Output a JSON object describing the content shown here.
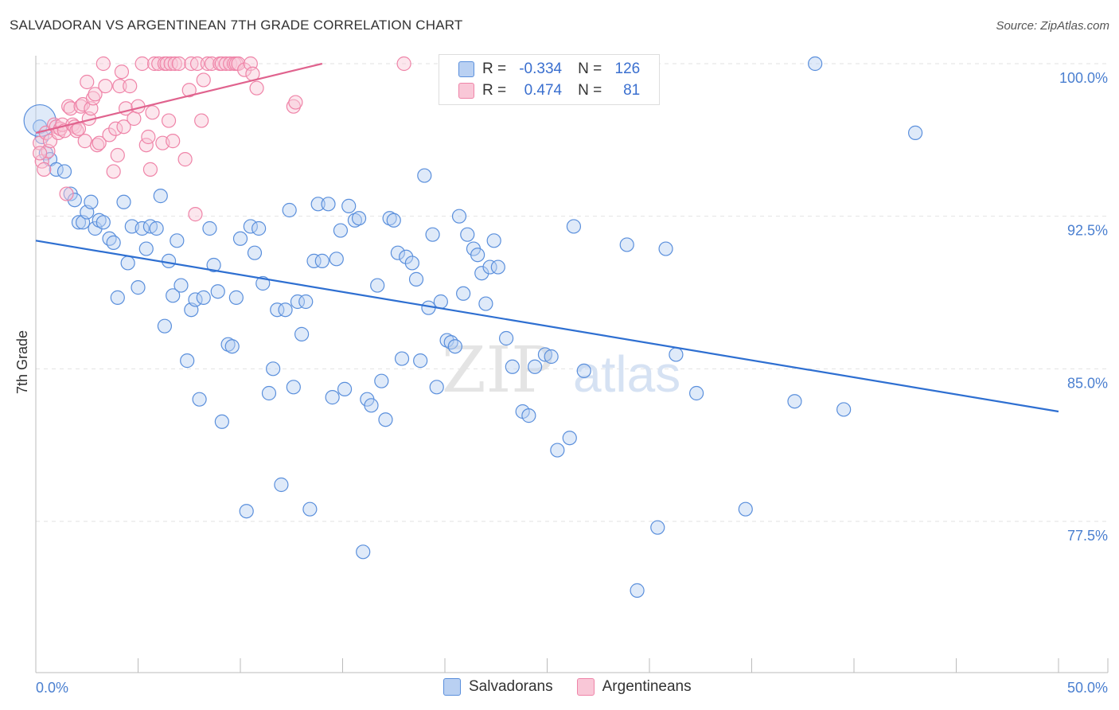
{
  "title": "SALVADORAN VS ARGENTINEAN 7TH GRADE CORRELATION CHART",
  "source": "Source: ZipAtlas.com",
  "watermark": {
    "zip": "ZIP",
    "atlas": "atlas"
  },
  "legend": {
    "r_label": "R =",
    "n_label": "N =",
    "series": [
      {
        "name": "Salvadorans",
        "r": "-0.334",
        "n": "126"
      },
      {
        "name": "Argentineans",
        "r": "0.474",
        "n": "81"
      }
    ]
  },
  "chart_data": {
    "type": "scatter",
    "title": "SALVADORAN VS ARGENTINEAN 7TH GRADE CORRELATION CHART",
    "xlabel": "",
    "ylabel": "7th Grade",
    "xlim": [
      0,
      50
    ],
    "ylim": [
      71,
      101
    ],
    "x_tick_labels": [
      "0.0%",
      "50.0%"
    ],
    "y_ticks": [
      100.0,
      92.5,
      85.0,
      77.5
    ],
    "y_tick_labels": [
      "100.0%",
      "92.5%",
      "85.0%",
      "77.5%"
    ],
    "grid": true,
    "colors": {
      "Salvadorans": "#5a8fdc",
      "Argentineans": "#ef84a8",
      "axis_text": "#4a7fd0"
    },
    "series": [
      {
        "name": "Salvadorans",
        "color": "#5a8fdc",
        "trend": {
          "x": [
            0,
            50
          ],
          "y": [
            91.3,
            82.9
          ]
        },
        "points": [
          [
            0.3,
            96.4
          ],
          [
            0.5,
            95.6
          ],
          [
            0.7,
            95.3
          ],
          [
            1.0,
            94.8
          ],
          [
            1.4,
            94.7
          ],
          [
            1.7,
            93.6
          ],
          [
            1.9,
            93.3
          ],
          [
            2.1,
            92.2
          ],
          [
            2.3,
            92.2
          ],
          [
            2.5,
            92.7
          ],
          [
            2.7,
            93.2
          ],
          [
            2.9,
            91.9
          ],
          [
            3.1,
            92.3
          ],
          [
            3.3,
            92.2
          ],
          [
            3.6,
            91.4
          ],
          [
            3.8,
            91.2
          ],
          [
            4.0,
            88.5
          ],
          [
            4.3,
            93.2
          ],
          [
            4.5,
            90.2
          ],
          [
            4.7,
            92.0
          ],
          [
            5.0,
            89.0
          ],
          [
            5.2,
            91.9
          ],
          [
            5.4,
            90.9
          ],
          [
            5.6,
            92.0
          ],
          [
            5.9,
            91.9
          ],
          [
            6.1,
            93.5
          ],
          [
            6.3,
            87.1
          ],
          [
            6.5,
            90.3
          ],
          [
            6.7,
            88.6
          ],
          [
            6.9,
            91.3
          ],
          [
            7.1,
            89.1
          ],
          [
            7.4,
            85.4
          ],
          [
            7.6,
            87.9
          ],
          [
            7.8,
            88.4
          ],
          [
            8.0,
            83.5
          ],
          [
            8.2,
            88.5
          ],
          [
            8.5,
            91.9
          ],
          [
            8.7,
            90.1
          ],
          [
            8.9,
            88.8
          ],
          [
            9.1,
            82.4
          ],
          [
            9.4,
            86.2
          ],
          [
            9.6,
            86.1
          ],
          [
            9.8,
            88.5
          ],
          [
            10.0,
            91.4
          ],
          [
            10.3,
            78.0
          ],
          [
            10.5,
            92.0
          ],
          [
            10.7,
            90.7
          ],
          [
            10.9,
            91.9
          ],
          [
            11.1,
            89.2
          ],
          [
            11.4,
            83.8
          ],
          [
            11.6,
            85.0
          ],
          [
            11.8,
            87.9
          ],
          [
            12.0,
            79.3
          ],
          [
            12.2,
            87.9
          ],
          [
            12.4,
            92.8
          ],
          [
            12.6,
            84.1
          ],
          [
            12.8,
            88.3
          ],
          [
            13.0,
            86.7
          ],
          [
            13.2,
            88.3
          ],
          [
            13.4,
            78.1
          ],
          [
            13.6,
            90.3
          ],
          [
            13.8,
            93.1
          ],
          [
            14.0,
            90.3
          ],
          [
            14.3,
            93.1
          ],
          [
            14.5,
            83.6
          ],
          [
            14.7,
            90.4
          ],
          [
            14.9,
            91.8
          ],
          [
            15.1,
            84.0
          ],
          [
            15.3,
            93.0
          ],
          [
            15.6,
            92.3
          ],
          [
            15.8,
            92.4
          ],
          [
            16.0,
            76.0
          ],
          [
            16.2,
            83.5
          ],
          [
            16.4,
            83.2
          ],
          [
            16.7,
            89.1
          ],
          [
            16.9,
            84.4
          ],
          [
            17.1,
            82.5
          ],
          [
            17.3,
            92.4
          ],
          [
            17.5,
            92.3
          ],
          [
            17.7,
            90.7
          ],
          [
            17.9,
            85.5
          ],
          [
            18.1,
            90.5
          ],
          [
            18.4,
            90.2
          ],
          [
            18.6,
            89.4
          ],
          [
            18.8,
            85.4
          ],
          [
            19.0,
            94.5
          ],
          [
            19.2,
            88.0
          ],
          [
            19.4,
            91.6
          ],
          [
            19.6,
            84.1
          ],
          [
            19.8,
            88.3
          ],
          [
            20.1,
            86.4
          ],
          [
            20.3,
            86.3
          ],
          [
            20.5,
            86.1
          ],
          [
            20.7,
            92.5
          ],
          [
            20.9,
            88.7
          ],
          [
            21.1,
            91.6
          ],
          [
            21.4,
            90.9
          ],
          [
            21.6,
            90.6
          ],
          [
            21.8,
            89.7
          ],
          [
            22.0,
            88.2
          ],
          [
            22.2,
            90.0
          ],
          [
            22.4,
            91.3
          ],
          [
            22.6,
            90.0
          ],
          [
            23.0,
            86.5
          ],
          [
            23.3,
            85.1
          ],
          [
            23.8,
            82.9
          ],
          [
            24.1,
            82.7
          ],
          [
            24.4,
            85.1
          ],
          [
            24.9,
            85.7
          ],
          [
            25.2,
            85.6
          ],
          [
            25.5,
            81.0
          ],
          [
            26.1,
            81.6
          ],
          [
            26.3,
            92.0
          ],
          [
            26.8,
            84.9
          ],
          [
            28.9,
            91.1
          ],
          [
            29.4,
            74.1
          ],
          [
            30.4,
            77.2
          ],
          [
            30.8,
            90.9
          ],
          [
            31.3,
            85.7
          ],
          [
            32.3,
            83.8
          ],
          [
            34.7,
            78.1
          ],
          [
            37.1,
            83.4
          ],
          [
            38.1,
            100.0
          ],
          [
            39.5,
            83.0
          ],
          [
            43.0,
            96.6
          ],
          [
            0.2,
            96.9
          ]
        ]
      },
      {
        "name": "Argentineans",
        "color": "#ef84a8",
        "trend": {
          "x": [
            0,
            14
          ],
          "y": [
            96.6,
            100.0
          ]
        },
        "points": [
          [
            0.2,
            96.1
          ],
          [
            0.3,
            95.2
          ],
          [
            0.4,
            94.8
          ],
          [
            0.5,
            96.6
          ],
          [
            0.6,
            95.7
          ],
          [
            0.7,
            96.2
          ],
          [
            0.9,
            97.0
          ],
          [
            1.0,
            96.9
          ],
          [
            1.1,
            96.6
          ],
          [
            1.2,
            96.8
          ],
          [
            1.3,
            97.0
          ],
          [
            1.4,
            96.7
          ],
          [
            1.5,
            93.6
          ],
          [
            1.6,
            97.9
          ],
          [
            1.7,
            97.8
          ],
          [
            1.8,
            97.0
          ],
          [
            1.9,
            96.9
          ],
          [
            2.0,
            96.7
          ],
          [
            2.1,
            96.8
          ],
          [
            2.2,
            97.9
          ],
          [
            2.3,
            98.0
          ],
          [
            2.4,
            96.2
          ],
          [
            2.5,
            99.1
          ],
          [
            2.6,
            97.3
          ],
          [
            2.7,
            97.8
          ],
          [
            2.8,
            98.3
          ],
          [
            2.9,
            98.5
          ],
          [
            3.0,
            96.0
          ],
          [
            3.1,
            96.1
          ],
          [
            3.3,
            100.0
          ],
          [
            3.4,
            98.9
          ],
          [
            3.6,
            96.5
          ],
          [
            3.8,
            94.7
          ],
          [
            3.9,
            96.8
          ],
          [
            4.0,
            95.5
          ],
          [
            4.1,
            98.9
          ],
          [
            4.2,
            99.6
          ],
          [
            4.3,
            96.9
          ],
          [
            4.4,
            97.8
          ],
          [
            4.6,
            98.9
          ],
          [
            4.8,
            97.3
          ],
          [
            5.0,
            97.9
          ],
          [
            5.2,
            100.0
          ],
          [
            5.4,
            96.0
          ],
          [
            5.5,
            96.4
          ],
          [
            5.6,
            94.8
          ],
          [
            5.7,
            97.6
          ],
          [
            5.8,
            100.0
          ],
          [
            6.0,
            100.0
          ],
          [
            6.2,
            96.1
          ],
          [
            6.3,
            100.0
          ],
          [
            6.4,
            100.0
          ],
          [
            6.5,
            97.2
          ],
          [
            6.6,
            100.0
          ],
          [
            6.7,
            96.2
          ],
          [
            6.8,
            100.0
          ],
          [
            7.0,
            100.0
          ],
          [
            7.3,
            95.3
          ],
          [
            7.5,
            98.7
          ],
          [
            7.6,
            100.0
          ],
          [
            7.8,
            92.6
          ],
          [
            7.9,
            100.0
          ],
          [
            8.1,
            97.2
          ],
          [
            8.2,
            99.2
          ],
          [
            8.4,
            100.0
          ],
          [
            8.6,
            100.0
          ],
          [
            9.0,
            100.0
          ],
          [
            9.1,
            100.0
          ],
          [
            9.3,
            100.0
          ],
          [
            9.5,
            100.0
          ],
          [
            9.7,
            100.0
          ],
          [
            9.8,
            100.0
          ],
          [
            9.9,
            100.0
          ],
          [
            10.2,
            99.7
          ],
          [
            10.5,
            100.0
          ],
          [
            10.6,
            99.5
          ],
          [
            10.8,
            98.8
          ],
          [
            12.6,
            97.9
          ],
          [
            12.7,
            98.1
          ],
          [
            18.0,
            100.0
          ],
          [
            0.2,
            95.6
          ]
        ]
      }
    ]
  }
}
